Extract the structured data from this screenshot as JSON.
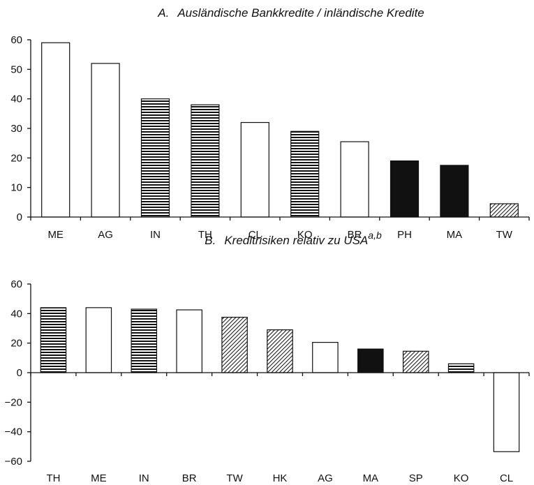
{
  "chart_data": [
    {
      "type": "bar",
      "title_prefix": "A.",
      "title": "Ausländische Bankkredite / inländische Kredite",
      "categories": [
        "ME",
        "AG",
        "IN",
        "TH",
        "CL",
        "KO",
        "BR",
        "PH",
        "MA",
        "TW"
      ],
      "values": [
        59,
        52,
        40,
        38,
        32,
        29,
        25.5,
        19,
        17.5,
        4.5
      ],
      "patterns": [
        "white",
        "white",
        "horizontal",
        "horizontal",
        "white",
        "horizontal",
        "white",
        "black",
        "black",
        "diagonal"
      ],
      "ylim": [
        0,
        60
      ],
      "yticks": [
        "0",
        "10",
        "20",
        "30",
        "40",
        "50",
        "60"
      ],
      "grid": false,
      "legend": "none"
    },
    {
      "type": "bar",
      "title_prefix": "B.",
      "title": "Kreditrisiken relativ zu USA",
      "title_superscript": "a,b",
      "categories": [
        "TH",
        "ME",
        "IN",
        "BR",
        "TW",
        "HK",
        "AG",
        "MA",
        "SP",
        "KO",
        "CL"
      ],
      "values": [
        44,
        44,
        43,
        42.5,
        37.5,
        29,
        20.5,
        16,
        14.5,
        6,
        -53.5
      ],
      "patterns": [
        "horizontal",
        "white",
        "horizontal",
        "white",
        "diagonal",
        "diagonal",
        "white",
        "black",
        "diagonal",
        "horizontal",
        "white"
      ],
      "ylim": [
        -60,
        60
      ],
      "yticks": [
        "−60",
        "−40",
        "−20",
        "0",
        "20",
        "40",
        "60"
      ],
      "grid": false,
      "legend": "none"
    }
  ]
}
